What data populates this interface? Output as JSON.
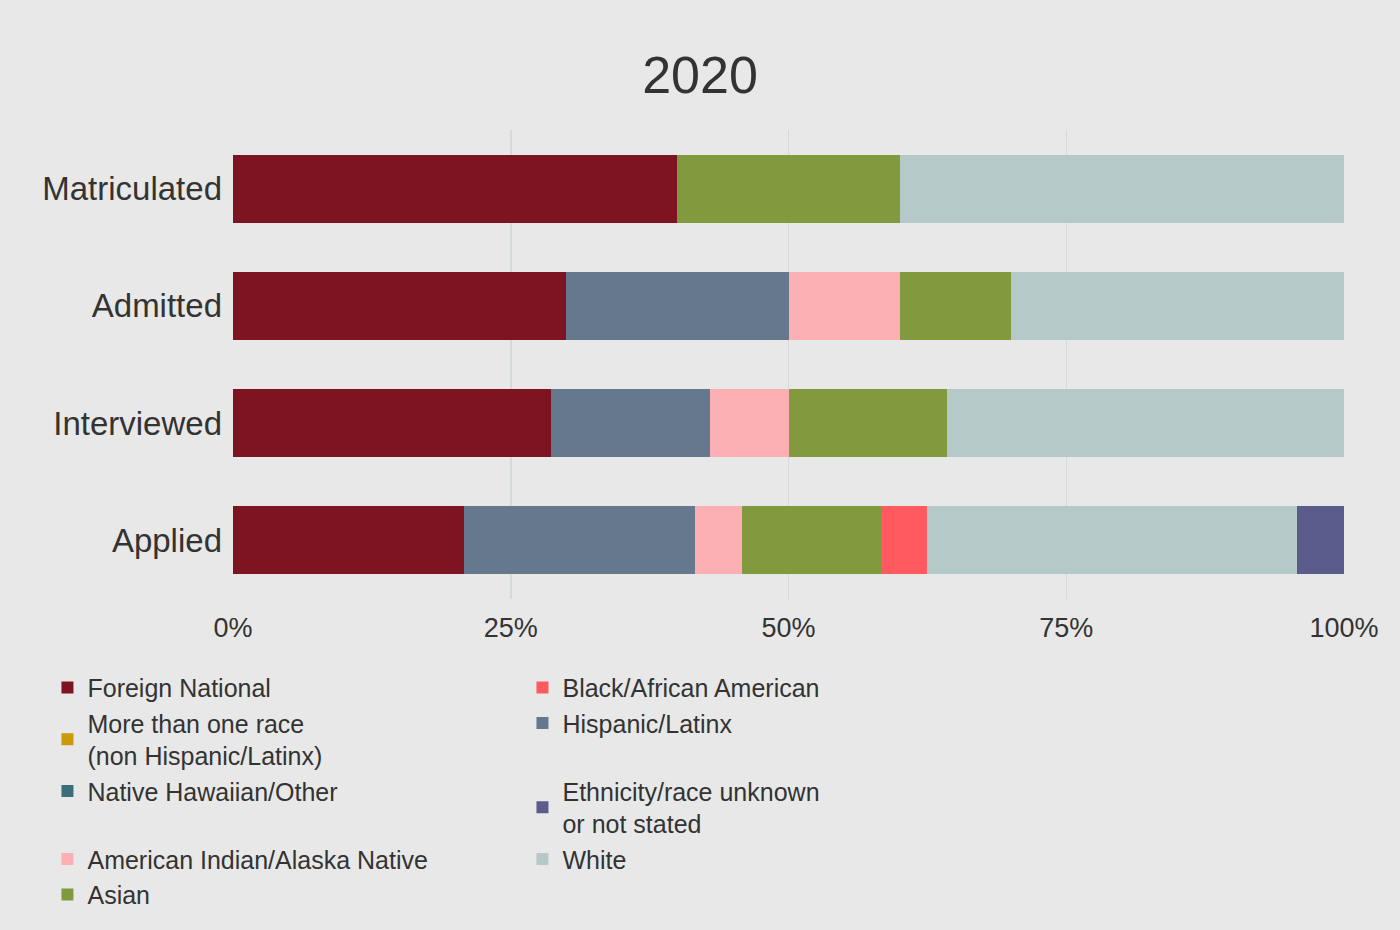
{
  "chart_data": {
    "type": "bar",
    "title": "2020",
    "orientation": "horizontal",
    "stacked": true,
    "grid": true,
    "legend": "bottom",
    "categories": [
      "Applied",
      "Interviewed",
      "Admitted",
      "Matriculated"
    ],
    "xlim": [
      0,
      100
    ],
    "xticks": [
      {
        "value": 0,
        "label": "0%"
      },
      {
        "value": 25,
        "label": "25%"
      },
      {
        "value": 50,
        "label": "50%"
      },
      {
        "value": 75,
        "label": "75%"
      },
      {
        "value": 100,
        "label": "100%"
      }
    ],
    "series": [
      {
        "name": "Foreign National",
        "color": "#7e1421",
        "values": [
          20.8,
          28.6,
          30,
          40
        ]
      },
      {
        "name": "Hispanic/Latinx",
        "color": "#66788e",
        "values": [
          20.8,
          14.3,
          20,
          0
        ]
      },
      {
        "name": "American Indian/Alaska Native",
        "color": "#fcb0b3",
        "values": [
          4.2,
          7.1,
          10,
          0
        ]
      },
      {
        "name": "Asian",
        "color": "#819a3d",
        "values": [
          12.5,
          14.3,
          10,
          20
        ]
      },
      {
        "name": "Black/African American",
        "color": "#fe5a60",
        "values": [
          4.2,
          0,
          0,
          0
        ]
      },
      {
        "name": "Native Hawaiian/Other",
        "color": "#3a6e7a",
        "values": [
          0,
          0,
          0,
          0
        ]
      },
      {
        "name": "White",
        "color": "#b5cac8",
        "values": [
          33.3,
          35.7,
          30,
          40
        ]
      },
      {
        "name": "More than one race (non Hispanic/Latinx)",
        "color": "#c99a0a",
        "values": [
          0,
          0,
          0,
          0
        ]
      },
      {
        "name": "Ethnicity/race unknown or not stated",
        "color": "#5b5b8c",
        "values": [
          4.2,
          0,
          0,
          0
        ]
      }
    ]
  }
}
